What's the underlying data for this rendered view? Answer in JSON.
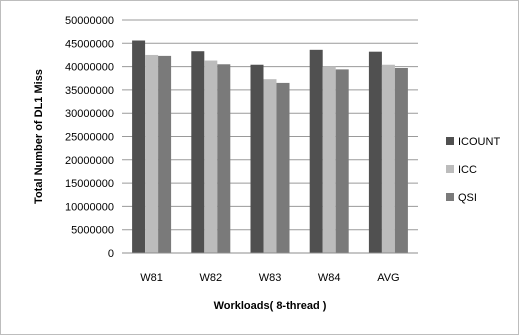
{
  "chart_data": {
    "type": "bar",
    "categories": [
      "W81",
      "W82",
      "W83",
      "W84",
      "AVG"
    ],
    "series": [
      {
        "name": "ICOUNT",
        "color": "#505050",
        "values": [
          45600000,
          43300000,
          40400000,
          43600000,
          43200000
        ]
      },
      {
        "name": "ICC",
        "color": "#bcbcbc",
        "values": [
          42500000,
          41300000,
          37300000,
          40000000,
          40400000
        ]
      },
      {
        "name": "QSI",
        "color": "#7a7a7a",
        "values": [
          42300000,
          40500000,
          36500000,
          39400000,
          39700000
        ]
      }
    ],
    "xlabel": "Workloads( 8-thread )",
    "ylabel": "Total Number of DL1 Miss",
    "ylim": [
      0,
      50000000
    ],
    "yticks": [
      0,
      5000000,
      10000000,
      15000000,
      20000000,
      25000000,
      30000000,
      35000000,
      40000000,
      45000000,
      50000000
    ],
    "grid": true,
    "legend_position": "right"
  }
}
